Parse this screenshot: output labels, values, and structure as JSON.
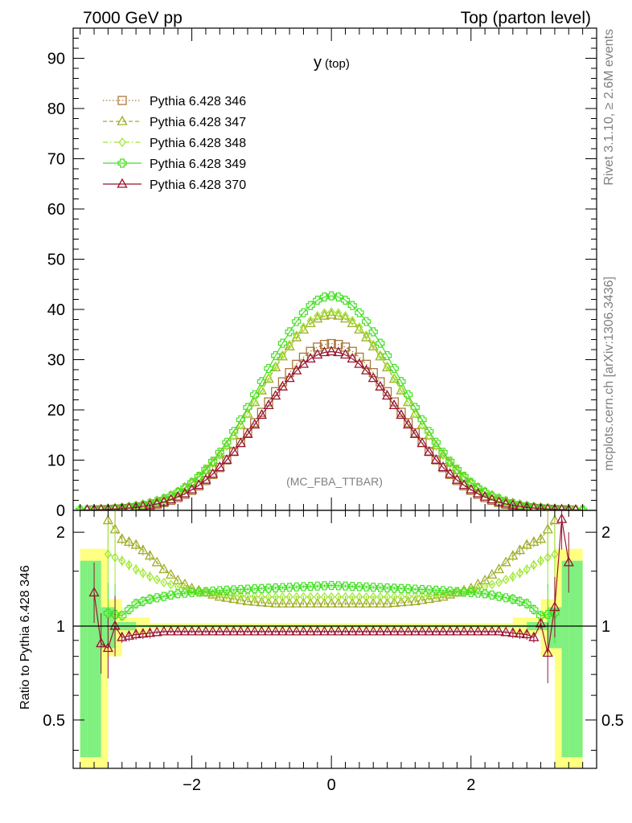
{
  "header": {
    "left": "7000 GeV pp",
    "right": "Top (parton level)"
  },
  "observable": "y",
  "observable_sub": "(top)",
  "watermark": "(MC_FBA_TTBAR)",
  "side_label_top": "Rivet 3.1.10, ≥ 2.6M events",
  "side_label_bottom": "mcplots.cern.ch [arXiv:1306.3436]",
  "ratio_ylabel": "Ratio to Pythia 6.428 346",
  "colors": {
    "s346": "#a8783c",
    "s347": "#a0ad2a",
    "s348": "#9ce62c",
    "s349": "#40e020",
    "s370": "#9a1530",
    "band_yellow": "#ffff80",
    "band_green": "#80f080"
  },
  "chart_data": [
    {
      "type": "line",
      "panel": "main",
      "title": "y (top)",
      "xlim": [
        -3.7,
        3.8
      ],
      "ylim": [
        0,
        96
      ],
      "yticks": [
        10,
        20,
        30,
        40,
        50,
        60,
        70,
        80,
        90
      ],
      "legend_position": "top-left",
      "x_bins": {
        "start": -3.6,
        "stop": 3.6,
        "width": 0.1
      },
      "shape": "gaussian",
      "series": [
        {
          "name": "Pythia 6.428 346",
          "peak": 33.2,
          "sigma": 0.97,
          "line": "dotted",
          "marker": "open-square"
        },
        {
          "name": "Pythia 6.428 347",
          "peak": 38.9,
          "sigma": 1.01,
          "line": "dashed",
          "marker": "open-triangle"
        },
        {
          "name": "Pythia 6.428 348",
          "peak": 39.5,
          "sigma": 1.0,
          "line": "dashdot",
          "marker": "open-diamond"
        },
        {
          "name": "Pythia 6.428 349",
          "peak": 42.7,
          "sigma": 0.99,
          "line": "solid",
          "marker": "open-cross"
        },
        {
          "name": "Pythia 6.428 370",
          "peak": 31.6,
          "sigma": 0.99,
          "line": "solid",
          "marker": "open-triangle"
        }
      ]
    },
    {
      "type": "line",
      "panel": "ratio",
      "xlim": [
        -3.7,
        3.8
      ],
      "ylim": [
        0.35,
        2.35
      ],
      "log_y": true,
      "xticks": [
        -2,
        0,
        2
      ],
      "yticks": [
        0.5,
        1,
        2
      ],
      "reference": 1,
      "series": [
        {
          "name": "Pythia 6.428 347",
          "points": [
            [
              -3.2,
              2.18
            ],
            [
              -3.0,
              1.9
            ],
            [
              -2.8,
              1.82
            ],
            [
              -2.6,
              1.68
            ],
            [
              -2.4,
              1.52
            ],
            [
              -2.2,
              1.4
            ],
            [
              -2.0,
              1.32
            ],
            [
              -1.6,
              1.24
            ],
            [
              -1.2,
              1.2
            ],
            [
              -0.8,
              1.18
            ],
            [
              0.0,
              1.18
            ],
            [
              0.8,
              1.18
            ],
            [
              1.2,
              1.2
            ],
            [
              1.6,
              1.24
            ],
            [
              2.0,
              1.32
            ],
            [
              2.2,
              1.4
            ],
            [
              2.4,
              1.52
            ],
            [
              2.6,
              1.68
            ],
            [
              2.8,
              1.82
            ],
            [
              3.0,
              1.9
            ],
            [
              3.2,
              2.18
            ]
          ]
        },
        {
          "name": "Pythia 6.428 348",
          "points": [
            [
              -3.2,
              1.7
            ],
            [
              -3.0,
              1.62
            ],
            [
              -2.8,
              1.52
            ],
            [
              -2.6,
              1.44
            ],
            [
              -2.4,
              1.38
            ],
            [
              -2.0,
              1.3
            ],
            [
              -1.6,
              1.26
            ],
            [
              -1.0,
              1.24
            ],
            [
              0.0,
              1.24
            ],
            [
              1.0,
              1.24
            ],
            [
              1.6,
              1.26
            ],
            [
              2.0,
              1.3
            ],
            [
              2.4,
              1.38
            ],
            [
              2.6,
              1.44
            ],
            [
              2.8,
              1.52
            ],
            [
              3.0,
              1.62
            ],
            [
              3.2,
              1.7
            ]
          ]
        },
        {
          "name": "Pythia 6.428 349",
          "points": [
            [
              -3.2,
              1.1
            ],
            [
              -3.0,
              1.08
            ],
            [
              -2.8,
              1.18
            ],
            [
              -2.6,
              1.22
            ],
            [
              -2.2,
              1.27
            ],
            [
              -1.6,
              1.3
            ],
            [
              -1.0,
              1.32
            ],
            [
              0.0,
              1.35
            ],
            [
              1.0,
              1.32
            ],
            [
              1.6,
              1.3
            ],
            [
              2.2,
              1.27
            ],
            [
              2.6,
              1.22
            ],
            [
              2.8,
              1.18
            ],
            [
              3.0,
              1.08
            ],
            [
              3.2,
              1.1
            ]
          ]
        },
        {
          "name": "Pythia 6.428 370",
          "points": [
            [
              -3.4,
              1.28
            ],
            [
              -3.3,
              0.88
            ],
            [
              -3.2,
              0.85
            ],
            [
              -3.1,
              1.0
            ],
            [
              -3.0,
              0.92
            ],
            [
              -2.8,
              0.94
            ],
            [
              -2.4,
              0.96
            ],
            [
              -2.0,
              0.96
            ],
            [
              -1.0,
              0.96
            ],
            [
              0.0,
              0.96
            ],
            [
              1.0,
              0.96
            ],
            [
              2.0,
              0.96
            ],
            [
              2.4,
              0.96
            ],
            [
              2.8,
              0.94
            ],
            [
              2.9,
              0.92
            ],
            [
              3.0,
              1.02
            ],
            [
              3.1,
              0.82
            ],
            [
              3.2,
              1.15
            ],
            [
              3.3,
              2.2
            ],
            [
              3.4,
              1.6
            ]
          ]
        }
      ]
    }
  ]
}
